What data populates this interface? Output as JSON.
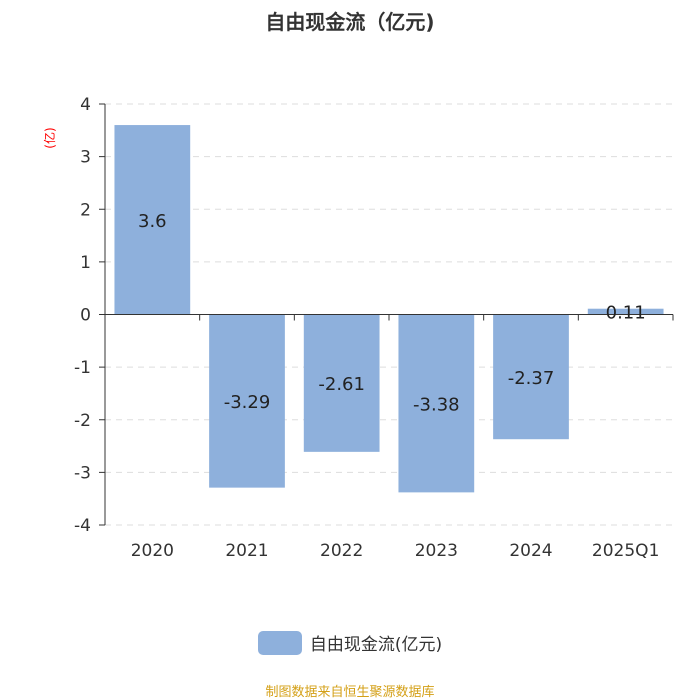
{
  "chart_data": {
    "type": "bar",
    "title": "自由现金流（亿元)",
    "ylabel": "亿",
    "categories": [
      "2020",
      "2021",
      "2022",
      "2023",
      "2024",
      "2025Q1"
    ],
    "series": [
      {
        "name": "自由现金流(亿元)",
        "values": [
          3.6,
          -3.29,
          -2.61,
          -3.38,
          -2.37,
          0.11
        ]
      }
    ],
    "ylim": [
      -4,
      4
    ],
    "yticks": [
      4,
      3,
      2,
      1,
      0,
      -1,
      -2,
      -3,
      -4
    ],
    "grid": true,
    "legend_position": "bottom-center",
    "bar_color": "#8eb0dc"
  },
  "source": "制图数据来自恒生聚源数据库"
}
